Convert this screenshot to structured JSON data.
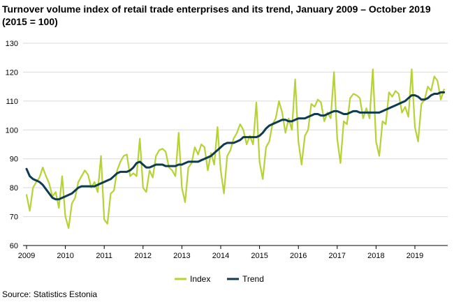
{
  "chart_data": {
    "type": "line",
    "title": "Turnover volume index of retail trade enterprises and its trend, January 2009 – October 2019 (2015 = 100)",
    "source": "Source: Statistics Estonia",
    "ylim": [
      60,
      130
    ],
    "yticks": [
      60,
      70,
      80,
      90,
      100,
      110,
      120,
      130
    ],
    "xticks": [
      "2009",
      "2010",
      "2011",
      "2012",
      "2013",
      "2014",
      "2015",
      "2016",
      "2017",
      "2018",
      "2019"
    ],
    "x_start": "2009-01",
    "x_end": "2019-10",
    "grid": true,
    "legend_position": "bottom",
    "series": [
      {
        "name": "Index",
        "color": "#b5d334",
        "values": [
          77.5,
          72,
          80,
          82,
          83.5,
          87,
          84,
          81.5,
          77,
          78.5,
          73,
          84,
          70,
          66,
          74.5,
          76.5,
          82,
          84,
          86,
          84.5,
          80,
          82,
          78.5,
          91,
          69,
          67.5,
          78,
          79,
          86,
          89,
          91,
          91.5,
          84,
          85,
          84,
          97,
          80,
          78.5,
          86,
          83.5,
          91,
          93,
          93.5,
          92.5,
          87,
          86,
          84,
          99,
          80,
          75,
          87,
          88.5,
          94,
          91.5,
          95,
          94,
          86,
          92,
          88,
          101,
          86,
          78,
          91,
          93,
          97,
          99,
          102,
          100,
          95,
          98,
          95,
          109.5,
          89,
          83,
          94,
          96,
          102,
          104,
          110,
          106,
          99,
          104,
          100,
          117.5,
          96,
          88,
          98,
          100,
          109,
          108,
          110.5,
          109.5,
          103,
          106,
          104,
          120,
          97,
          88.5,
          103,
          102,
          111,
          112.5,
          112,
          111,
          104,
          107.5,
          104,
          121,
          96,
          91,
          103,
          102,
          113,
          111.5,
          113.5,
          112.5,
          106,
          108,
          104.5,
          121,
          101,
          96,
          109,
          110.5,
          115,
          113.5,
          118.5,
          117,
          110.5,
          114
        ]
      },
      {
        "name": "Trend",
        "color": "#0d3b4f",
        "values": [
          86.5,
          84,
          83,
          82.5,
          82,
          81,
          79.5,
          78,
          76.5,
          76,
          76,
          76.5,
          77,
          77.5,
          78,
          79,
          80,
          80.5,
          80.5,
          80.5,
          80.5,
          80.5,
          81,
          81.5,
          82,
          82.5,
          83,
          84,
          85,
          85.5,
          85.5,
          85.5,
          86,
          87,
          88.5,
          89,
          88,
          87,
          87,
          87.5,
          88,
          88,
          88,
          87.5,
          87.5,
          87.5,
          87.5,
          88,
          88,
          88.5,
          89,
          89,
          89,
          89,
          89.5,
          90,
          90.5,
          91,
          92,
          93,
          94,
          95,
          95.5,
          95.5,
          95.5,
          96,
          96.5,
          97.5,
          97.5,
          97.5,
          97.5,
          97.5,
          98,
          99,
          100.5,
          101.5,
          102,
          102.5,
          103,
          103.5,
          103.5,
          103,
          103,
          103.5,
          104,
          104,
          104,
          104.5,
          105,
          105.5,
          105.5,
          105,
          105,
          105.5,
          106,
          106.5,
          106.5,
          106,
          105.5,
          105.5,
          106,
          106.5,
          106.5,
          106,
          106,
          106,
          106,
          106,
          106,
          106,
          106.5,
          107,
          107.5,
          108,
          108.5,
          109,
          109.5,
          110,
          111,
          112,
          112,
          111.5,
          110.5,
          110.5,
          111,
          112,
          112.5,
          112.5,
          113,
          113
        ]
      }
    ]
  }
}
